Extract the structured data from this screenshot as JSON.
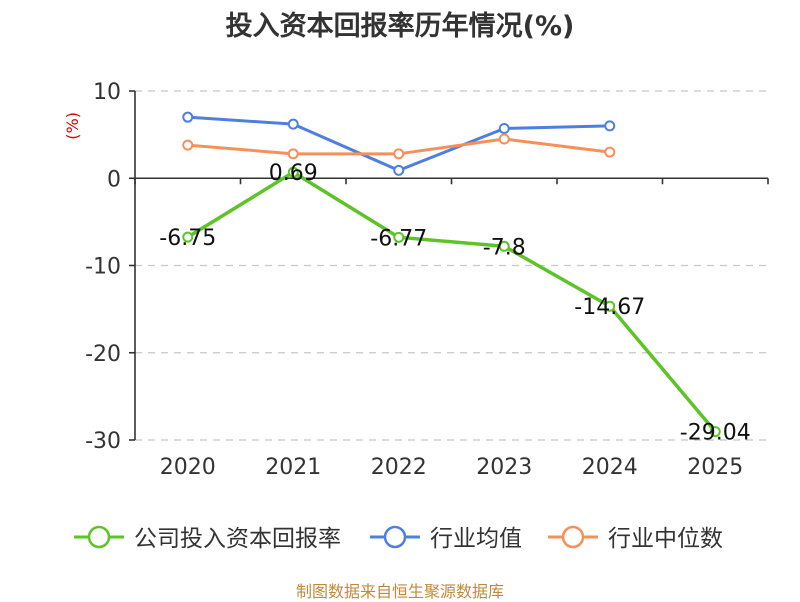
{
  "chart_data": {
    "type": "line",
    "title": "投入资本回报率历年情况(%)",
    "ylabel": "(%)",
    "xlabel": "",
    "categories": [
      "2020",
      "2021",
      "2022",
      "2023",
      "2024",
      "2025"
    ],
    "ylim": [
      -30,
      10
    ],
    "yticks": [
      10,
      0,
      -10,
      -20,
      -30
    ],
    "grid": true,
    "legend_position": "bottom",
    "series": [
      {
        "name": "公司投入资本回报率",
        "color": "#5cc427",
        "values": [
          -6.75,
          0.69,
          -6.77,
          -7.8,
          -14.67,
          -29.04
        ],
        "labels": [
          "-6.75",
          "0.69",
          "-6.77",
          "-7.8",
          "-14.67",
          "-29.04"
        ]
      },
      {
        "name": "行业均值",
        "color": "#4d7fe0",
        "values": [
          7.0,
          6.2,
          0.9,
          5.7,
          6.0,
          null
        ]
      },
      {
        "name": "行业中位数",
        "color": "#f5905a",
        "values": [
          3.8,
          2.8,
          2.8,
          4.5,
          3.0,
          null
        ]
      }
    ]
  },
  "footer": {
    "source": "制图数据来自恒生聚源数据库"
  }
}
